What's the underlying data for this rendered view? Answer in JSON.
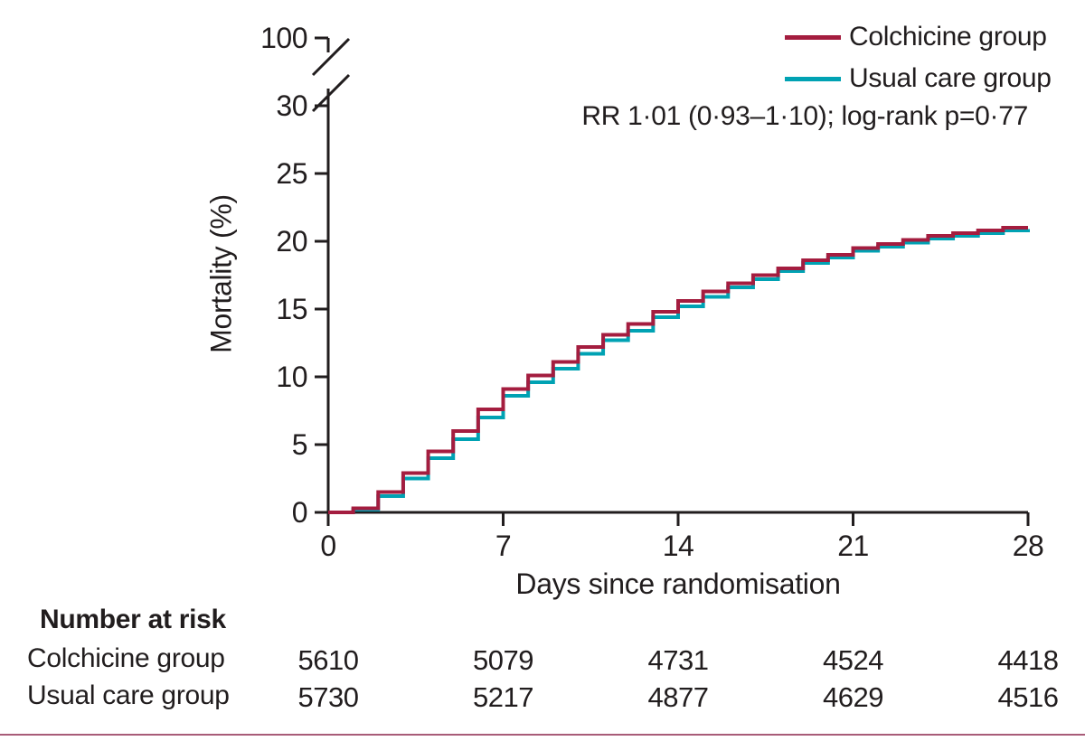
{
  "figure": {
    "ylabel": "Mortality (%)",
    "xlabel": "Days since randomisation",
    "annotation": "RR 1·01 (0·93–1·10); log-rank p=0·77",
    "colors": {
      "colchicine": "#a41d3f",
      "usual_care": "#00a2b3",
      "axis": "#211d1e",
      "bottom_rule": "#a85c78"
    }
  },
  "legend": [
    {
      "label": "Colchicine group",
      "color": "#a41d3f"
    },
    {
      "label": "Usual care group",
      "color": "#00a2b3"
    }
  ],
  "chart_data": {
    "type": "line",
    "subtype": "kaplan-meier-step",
    "title": "",
    "xlabel": "Days since randomisation",
    "ylabel": "Mortality (%)",
    "annotation": "RR 1·01 (0·93–1·10); log-rank p=0·77",
    "xlim": [
      0,
      28
    ],
    "x_ticks": [
      0,
      7,
      14,
      21,
      28
    ],
    "y_axis": {
      "ticks": [
        0,
        5,
        10,
        15,
        20,
        25,
        30,
        100
      ],
      "break_between": [
        30,
        100
      ],
      "displayed_max_before_break": 30
    },
    "grid": false,
    "legend_position": "top-right",
    "x": [
      0,
      1,
      2,
      3,
      4,
      5,
      6,
      7,
      8,
      9,
      10,
      11,
      12,
      13,
      14,
      15,
      16,
      17,
      18,
      19,
      20,
      21,
      22,
      23,
      24,
      25,
      26,
      27,
      28
    ],
    "series": [
      {
        "name": "Colchicine group",
        "color": "#a41d3f",
        "y": [
          0,
          0.3,
          1.5,
          2.9,
          4.5,
          6.0,
          7.6,
          9.1,
          10.1,
          11.1,
          12.2,
          13.1,
          13.9,
          14.8,
          15.6,
          16.3,
          16.9,
          17.5,
          18.0,
          18.6,
          19.0,
          19.5,
          19.8,
          20.1,
          20.4,
          20.6,
          20.8,
          21.0,
          21.0
        ]
      },
      {
        "name": "Usual care group",
        "color": "#00a2b3",
        "y": [
          0,
          0.2,
          1.2,
          2.5,
          4.0,
          5.4,
          7.0,
          8.6,
          9.6,
          10.6,
          11.7,
          12.7,
          13.4,
          14.4,
          15.2,
          15.9,
          16.6,
          17.2,
          17.8,
          18.4,
          18.8,
          19.3,
          19.6,
          19.9,
          20.2,
          20.4,
          20.6,
          20.8,
          20.9
        ]
      }
    ]
  },
  "risk_table": {
    "header": "Number at risk",
    "days": [
      0,
      7,
      14,
      21,
      28
    ],
    "rows": [
      {
        "label": "Colchicine group",
        "values": [
          5610,
          5079,
          4731,
          4524,
          4418
        ]
      },
      {
        "label": "Usual care group",
        "values": [
          5730,
          5217,
          4877,
          4629,
          4516
        ]
      }
    ]
  }
}
